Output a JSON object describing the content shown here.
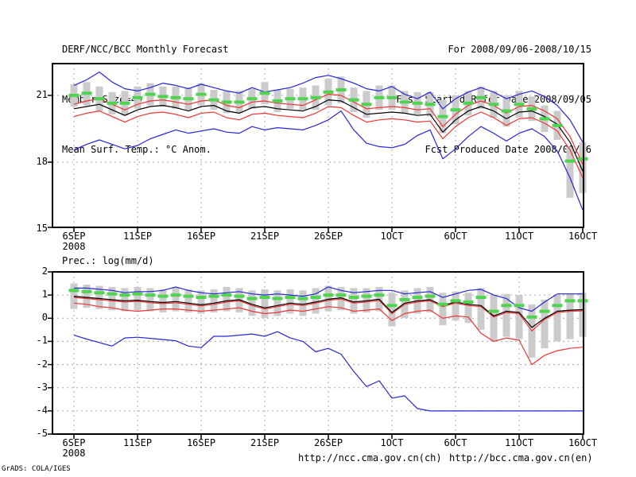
{
  "header": {
    "left": [
      "DERF/NCC/BCC Monthly Forecast",
      "Member Size=40",
      "Mean Surf. Temp.: °C Anom."
    ],
    "right": [
      "For 2008/09/06-2008/10/15",
      "Fcst Started Refer Date 2008/09/05",
      "Fcst Produced Date 2008/09/06"
    ]
  },
  "footer": {
    "url_ch": "http://ncc.cma.gov.cn(ch)",
    "url_en": "http://bcc.cma.gov.cn(en)",
    "credit": "GrADS: COLA/IGES"
  },
  "colors": {
    "blue": "#2626d8",
    "red": "#ef3434",
    "black": "#000000",
    "green": "#4fd44f",
    "band_gray": "#cbcbcb",
    "grid_gray": "#a8a8a8",
    "frame": "#000000"
  },
  "chart_data": [
    {
      "type": "line",
      "title": "Mean Surf. Temp.: °C Anom.",
      "ylabel": "",
      "ylim": [
        15.07,
        22.43
      ],
      "yticks": [
        21,
        18,
        15
      ],
      "x_ticks": [
        {
          "label": "6SEP\n2008",
          "day": 0
        },
        {
          "label": "11SEP",
          "day": 5
        },
        {
          "label": "16SEP",
          "day": 10
        },
        {
          "label": "21SEP",
          "day": 15
        },
        {
          "label": "26SEP",
          "day": 20
        },
        {
          "label": "1OCT",
          "day": 25
        },
        {
          "label": "6OCT",
          "day": 30
        },
        {
          "label": "11OCT",
          "day": 35
        },
        {
          "label": "16OCT",
          "day": 40
        }
      ],
      "n_days": 41,
      "grid": true,
      "spread_band": {
        "name": "ensemble-spread-band",
        "ranges": [
          [
            20.5,
            21.5
          ],
          [
            20.55,
            21.6
          ],
          [
            20.3,
            21.4
          ],
          [
            20.15,
            21.15
          ],
          [
            20.1,
            21.2
          ],
          [
            20.4,
            21.4
          ],
          [
            20.55,
            21.55
          ],
          [
            20.5,
            21.4
          ],
          [
            20.4,
            21.4
          ],
          [
            20.35,
            21.35
          ],
          [
            20.55,
            21.55
          ],
          [
            20.35,
            21.25
          ],
          [
            20.2,
            21.2
          ],
          [
            20.2,
            21.2
          ],
          [
            20.4,
            21.3
          ],
          [
            20.6,
            21.6
          ],
          [
            20.25,
            21.25
          ],
          [
            20.4,
            21.3
          ],
          [
            20.35,
            21.35
          ],
          [
            20.35,
            21.45
          ],
          [
            20.55,
            21.75
          ],
          [
            20.65,
            21.85
          ],
          [
            20.25,
            21.35
          ],
          [
            20.0,
            21.2
          ],
          [
            20.35,
            21.45
          ],
          [
            20.35,
            21.45
          ],
          [
            20.2,
            21.2
          ],
          [
            20.15,
            21.15
          ],
          [
            20.05,
            21.15
          ],
          [
            19.3,
            20.8
          ],
          [
            19.7,
            21.0
          ],
          [
            20.1,
            21.2
          ],
          [
            20.4,
            21.4
          ],
          [
            20.0,
            21.2
          ],
          [
            19.6,
            21.0
          ],
          [
            20.0,
            21.2
          ],
          [
            19.85,
            20.95
          ],
          [
            19.35,
            20.55
          ],
          [
            19.0,
            20.3
          ],
          [
            16.4,
            18.7
          ],
          [
            16.6,
            18.9
          ]
        ]
      },
      "series": [
        {
          "name": "ensemble-max",
          "color_key": "blue",
          "style": "line",
          "values": [
            21.45,
            21.7,
            22.05,
            21.6,
            21.3,
            21.2,
            21.35,
            21.55,
            21.45,
            21.3,
            21.5,
            21.35,
            21.2,
            21.1,
            21.35,
            21.15,
            21.25,
            21.35,
            21.55,
            21.8,
            21.9,
            21.75,
            21.55,
            21.3,
            21.2,
            21.4,
            21.05,
            20.85,
            21.15,
            20.4,
            20.85,
            21.15,
            21.35,
            21.15,
            20.85,
            21.05,
            21.2,
            20.95,
            20.55,
            19.9,
            18.9
          ]
        },
        {
          "name": "ensemble-min",
          "color_key": "blue",
          "style": "line",
          "values": [
            18.55,
            18.8,
            19.0,
            18.8,
            18.6,
            18.75,
            19.05,
            19.25,
            19.45,
            19.3,
            19.4,
            19.5,
            19.35,
            19.3,
            19.6,
            19.45,
            19.55,
            19.5,
            19.45,
            19.65,
            19.9,
            20.3,
            19.45,
            18.85,
            18.7,
            18.65,
            18.8,
            19.2,
            19.45,
            18.15,
            18.6,
            19.15,
            19.6,
            19.3,
            18.95,
            19.3,
            19.5,
            19.15,
            18.5,
            17.3,
            15.85
          ]
        },
        {
          "name": "upper-quartile",
          "color_key": "red",
          "style": "line",
          "values": [
            20.6,
            20.75,
            20.85,
            20.6,
            20.35,
            20.6,
            20.75,
            20.8,
            20.7,
            20.6,
            20.75,
            20.8,
            20.55,
            20.45,
            20.7,
            20.75,
            20.65,
            20.6,
            20.55,
            20.8,
            21.05,
            21.0,
            20.7,
            20.4,
            20.45,
            20.5,
            20.45,
            20.35,
            20.4,
            19.6,
            20.15,
            20.55,
            20.75,
            20.55,
            20.2,
            20.5,
            20.55,
            20.3,
            19.95,
            19.15,
            17.9
          ]
        },
        {
          "name": "lower-quartile",
          "color_key": "red",
          "style": "line",
          "values": [
            20.05,
            20.2,
            20.3,
            20.05,
            19.8,
            20.05,
            20.2,
            20.25,
            20.15,
            20.0,
            20.2,
            20.25,
            20.0,
            19.9,
            20.15,
            20.2,
            20.1,
            20.05,
            20.0,
            20.2,
            20.5,
            20.45,
            20.1,
            19.8,
            19.9,
            19.95,
            19.9,
            19.8,
            19.85,
            19.05,
            19.6,
            20.0,
            20.25,
            20.0,
            19.65,
            19.95,
            20.0,
            19.75,
            19.4,
            18.55,
            17.3
          ]
        },
        {
          "name": "ensemble-mean",
          "color_key": "black",
          "style": "line",
          "values": [
            20.4,
            20.5,
            20.6,
            20.35,
            20.1,
            20.35,
            20.5,
            20.55,
            20.45,
            20.3,
            20.5,
            20.55,
            20.3,
            20.2,
            20.45,
            20.5,
            20.4,
            20.35,
            20.3,
            20.5,
            20.8,
            20.75,
            20.45,
            20.15,
            20.2,
            20.25,
            20.2,
            20.1,
            20.15,
            19.35,
            19.9,
            20.3,
            20.5,
            20.3,
            19.95,
            20.25,
            20.3,
            20.05,
            19.7,
            18.9,
            17.6
          ]
        },
        {
          "name": "daily-green-marks",
          "color_key": "green",
          "style": "dash-marker",
          "values": [
            21.0,
            21.1,
            20.85,
            20.65,
            20.65,
            20.9,
            21.05,
            20.95,
            20.9,
            20.85,
            21.05,
            20.8,
            20.7,
            20.7,
            20.85,
            21.1,
            20.75,
            20.85,
            20.85,
            20.9,
            21.15,
            21.25,
            20.8,
            20.6,
            20.9,
            20.9,
            20.7,
            20.65,
            20.6,
            20.05,
            20.35,
            20.65,
            20.9,
            20.6,
            20.3,
            20.6,
            20.4,
            19.95,
            19.65,
            18.05,
            18.15
          ]
        }
      ]
    },
    {
      "type": "line",
      "title": "Prec.: log(mm/d)",
      "ylabel": "",
      "ylim": [
        -5,
        2
      ],
      "yticks": [
        2,
        1,
        0,
        -1,
        -2,
        -3,
        -4,
        -5
      ],
      "x_ticks": [
        {
          "label": "6SEP\n2008",
          "day": 0
        },
        {
          "label": "11SEP",
          "day": 5
        },
        {
          "label": "16SEP",
          "day": 10
        },
        {
          "label": "21SEP",
          "day": 15
        },
        {
          "label": "26SEP",
          "day": 20
        },
        {
          "label": "1OCT",
          "day": 25
        },
        {
          "label": "6OCT",
          "day": 30
        },
        {
          "label": "11OCT",
          "day": 35
        },
        {
          "label": "16OCT",
          "day": 40
        }
      ],
      "n_days": 41,
      "grid": true,
      "spread_band": {
        "name": "ensemble-spread-band",
        "ranges": [
          [
            0.4,
            1.5
          ],
          [
            0.45,
            1.45
          ],
          [
            0.4,
            1.4
          ],
          [
            0.35,
            1.35
          ],
          [
            0.3,
            1.3
          ],
          [
            0.35,
            1.35
          ],
          [
            0.3,
            1.3
          ],
          [
            0.25,
            1.25
          ],
          [
            0.3,
            1.35
          ],
          [
            0.25,
            1.25
          ],
          [
            0.2,
            1.2
          ],
          [
            0.25,
            1.25
          ],
          [
            0.3,
            1.35
          ],
          [
            0.25,
            1.3
          ],
          [
            0.1,
            1.2
          ],
          [
            0.0,
            1.25
          ],
          [
            0.1,
            1.2
          ],
          [
            0.2,
            1.25
          ],
          [
            0.1,
            1.2
          ],
          [
            0.2,
            1.3
          ],
          [
            0.3,
            1.4
          ],
          [
            0.35,
            1.35
          ],
          [
            0.2,
            1.3
          ],
          [
            0.25,
            1.3
          ],
          [
            0.3,
            1.35
          ],
          [
            -0.35,
            1.1
          ],
          [
            0.0,
            1.2
          ],
          [
            0.2,
            1.3
          ],
          [
            0.25,
            1.35
          ],
          [
            -0.3,
            1.1
          ],
          [
            -0.1,
            1.15
          ],
          [
            -0.2,
            1.1
          ],
          [
            -0.5,
            1.3
          ],
          [
            -1.0,
            1.0
          ],
          [
            -0.8,
            1.05
          ],
          [
            -0.9,
            1.0
          ],
          [
            -1.7,
            0.6
          ],
          [
            -1.3,
            0.8
          ],
          [
            -1.0,
            1.0
          ],
          [
            -0.9,
            1.05
          ],
          [
            -0.8,
            1.1
          ]
        ]
      },
      "series": [
        {
          "name": "ensemble-max",
          "color_key": "blue",
          "style": "line",
          "values": [
            1.3,
            1.3,
            1.25,
            1.2,
            1.1,
            1.15,
            1.15,
            1.2,
            1.35,
            1.2,
            1.1,
            1.05,
            1.1,
            1.15,
            1.05,
            1.0,
            1.05,
            1.0,
            0.95,
            1.05,
            1.35,
            1.2,
            1.1,
            1.15,
            1.2,
            1.2,
            1.05,
            1.1,
            1.15,
            0.9,
            1.05,
            1.2,
            1.25,
            1.0,
            0.85,
            0.45,
            0.3,
            0.7,
            1.05,
            1.05,
            1.05
          ]
        },
        {
          "name": "ensemble-min",
          "color_key": "blue",
          "style": "line",
          "values": [
            -0.73,
            -0.9,
            -1.05,
            -1.2,
            -0.85,
            -0.82,
            -0.87,
            -0.92,
            -0.97,
            -1.2,
            -1.27,
            -0.78,
            -0.78,
            -0.73,
            -0.68,
            -0.78,
            -0.58,
            -0.85,
            -1.0,
            -1.45,
            -1.3,
            -1.55,
            -2.3,
            -2.95,
            -2.7,
            -3.45,
            -3.35,
            -3.9,
            -4.0,
            -4.0,
            -4.0,
            -4.0,
            -4.0,
            -4.0,
            -4.0,
            -4.0,
            -4.0,
            -4.0,
            -4.0,
            -4.0,
            -4.0
          ]
        },
        {
          "name": "upper-quartile",
          "color_key": "red",
          "style": "line",
          "values": [
            0.9,
            0.85,
            0.8,
            0.75,
            0.7,
            0.73,
            0.67,
            0.63,
            0.67,
            0.6,
            0.53,
            0.6,
            0.7,
            0.75,
            0.55,
            0.4,
            0.5,
            0.6,
            0.55,
            0.65,
            0.77,
            0.83,
            0.65,
            0.7,
            0.77,
            0.2,
            0.6,
            0.7,
            0.75,
            0.5,
            0.65,
            0.55,
            0.5,
            0.05,
            0.25,
            0.2,
            -0.55,
            -0.05,
            0.25,
            0.3,
            0.32
          ]
        },
        {
          "name": "lower-quartile",
          "color_key": "red",
          "style": "line",
          "values": [
            0.65,
            0.6,
            0.5,
            0.45,
            0.35,
            0.3,
            0.35,
            0.4,
            0.4,
            0.35,
            0.3,
            0.35,
            0.4,
            0.45,
            0.3,
            0.2,
            0.25,
            0.35,
            0.3,
            0.4,
            0.5,
            0.45,
            0.3,
            0.35,
            0.4,
            -0.1,
            0.2,
            0.3,
            0.35,
            0.0,
            0.1,
            0.05,
            -0.65,
            -1.0,
            -0.85,
            -0.95,
            -2.0,
            -1.6,
            -1.4,
            -1.3,
            -1.25
          ]
        },
        {
          "name": "ensemble-mean",
          "color_key": "black",
          "style": "line",
          "values": [
            0.95,
            0.9,
            0.85,
            0.8,
            0.75,
            0.78,
            0.72,
            0.68,
            0.72,
            0.65,
            0.58,
            0.65,
            0.75,
            0.8,
            0.6,
            0.45,
            0.55,
            0.65,
            0.6,
            0.7,
            0.82,
            0.88,
            0.7,
            0.75,
            0.82,
            0.25,
            0.65,
            0.75,
            0.8,
            0.55,
            0.7,
            0.6,
            0.55,
            0.1,
            0.3,
            0.25,
            -0.4,
            0.0,
            0.3,
            0.35,
            0.37
          ]
        },
        {
          "name": "daily-green-marks",
          "color_key": "green",
          "style": "dash-marker",
          "values": [
            1.2,
            1.15,
            1.1,
            1.05,
            1.0,
            1.05,
            1.0,
            0.95,
            1.0,
            0.95,
            0.9,
            0.95,
            1.0,
            0.95,
            0.85,
            0.9,
            0.85,
            0.9,
            0.85,
            0.9,
            1.0,
            1.0,
            0.9,
            0.95,
            1.0,
            0.55,
            0.8,
            0.9,
            0.95,
            0.6,
            0.75,
            0.7,
            0.9,
            0.3,
            0.55,
            0.55,
            0.05,
            0.3,
            0.55,
            0.75,
            0.75
          ]
        }
      ]
    }
  ]
}
